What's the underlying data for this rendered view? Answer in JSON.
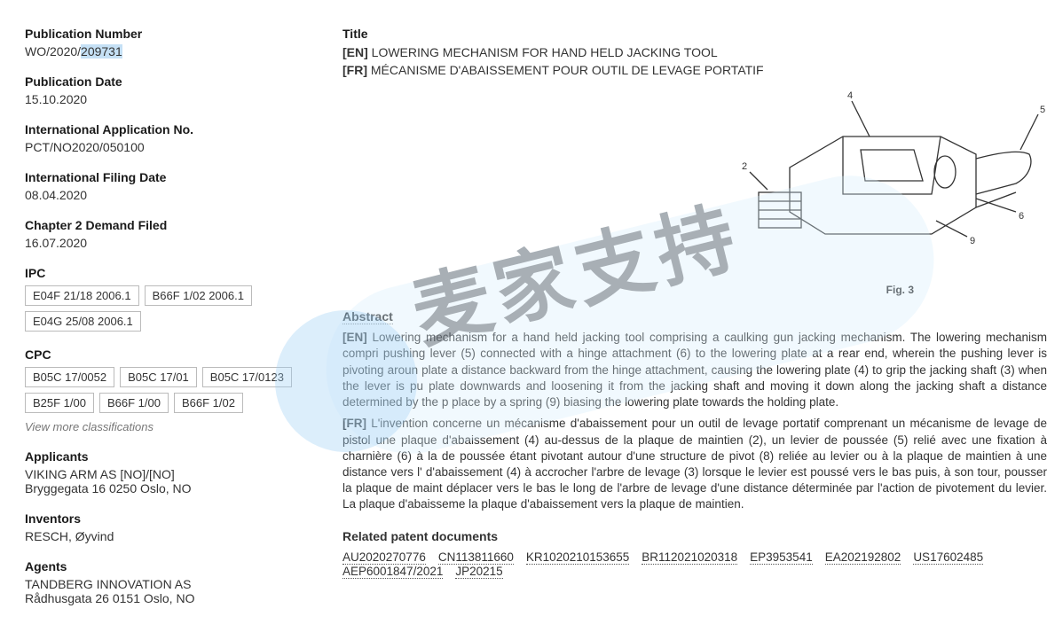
{
  "left": {
    "pubnum_label": "Publication Number",
    "pubnum_prefix": "WO/2020/",
    "pubnum_highlight": "209731",
    "pubdate_label": "Publication Date",
    "pubdate": "15.10.2020",
    "appno_label": "International Application No.",
    "appno": "PCT/NO2020/050100",
    "filingdate_label": "International Filing Date",
    "filingdate": "08.04.2020",
    "chapter2_label": "Chapter 2 Demand Filed",
    "chapter2": "16.07.2020",
    "ipc_label": "IPC",
    "ipc_tags": [
      "E04F 21/18 2006.1",
      "B66F 1/02 2006.1",
      "E04G 25/08 2006.1"
    ],
    "cpc_label": "CPC",
    "cpc_tags": [
      "B05C 17/0052",
      "B05C 17/01",
      "B05C 17/0123",
      "B25F 1/00",
      "B66F 1/00",
      "B66F 1/02"
    ],
    "more": "View more classifications",
    "applicants_label": "Applicants",
    "applicants_line1": "VIKING ARM AS [NO]/[NO]",
    "applicants_line2": "Bryggegata 16 0250 Oslo, NO",
    "inventors_label": "Inventors",
    "inventors": "RESCH, Øyvind",
    "agents_label": "Agents",
    "agents_line1": "TANDBERG INNOVATION AS",
    "agents_line2": "Rådhusgata 26 0151 Oslo, NO"
  },
  "right": {
    "title_label": "Title",
    "title_en_tag": "[EN]",
    "title_en": " LOWERING MECHANISM FOR HAND HELD JACKING TOOL",
    "title_fr_tag": "[FR]",
    "title_fr": " MÉCANISME D'ABAISSEMENT POUR OUTIL DE LEVAGE PORTATIF",
    "fig_caption": "Fig. 3",
    "fig_labels": {
      "l2": "2",
      "l4": "4",
      "l5": "5",
      "l6": "6",
      "l9": "9"
    },
    "abstract_label": "Abstract",
    "abstract_en_tag": "[EN]",
    "abstract_en": " Lowering mechanism for a hand held jacking tool comprising a caulking gun jacking mechanism. The lowering mechanism compri pushing lever (5) connected with a hinge attachment (6) to the lowering plate at a rear end, wherein the pushing lever is pivoting aroun plate a distance backward from the hinge attachment, causing the lowering plate (4) to grip the jacking shaft (3) when the lever is pu plate downwards and loosening it from the jacking shaft and moving it down along the jacking shaft a distance determined by the p place by a spring (9) biasing the lowering plate towards the holding plate.",
    "abstract_fr_tag": "[FR]",
    "abstract_fr": " L'invention concerne un mécanisme d'abaissement pour un outil de levage portatif comprenant un mécanisme de levage de pistol une plaque d'abaissement (4) au-dessus de la plaque de maintien (2), un levier de poussée (5) relié avec une fixation à charnière (6) à la de poussée étant pivotant autour d'une structure de pivot (8) reliée au levier ou à la plaque de maintien à une distance vers l' d'abaissement (4) à accrocher l'arbre de levage (3) lorsque le levier est poussé vers le bas puis, à son tour, pousser la plaque de maint déplacer vers le bas le long de l'arbre de levage d'une distance déterminée par l'action de pivotement du levier. La plaque d'abaisseme la plaque d'abaissement vers la plaque de maintien.",
    "related_label": "Related patent documents",
    "related": [
      "AU2020270776",
      "CN113811660",
      "KR1020210153655",
      "BR112021020318",
      "EP3953541",
      "EA202192802",
      "US17602485",
      "AEP6001847/2021",
      "JP20215"
    ]
  },
  "watermark_text": "麦家支持"
}
